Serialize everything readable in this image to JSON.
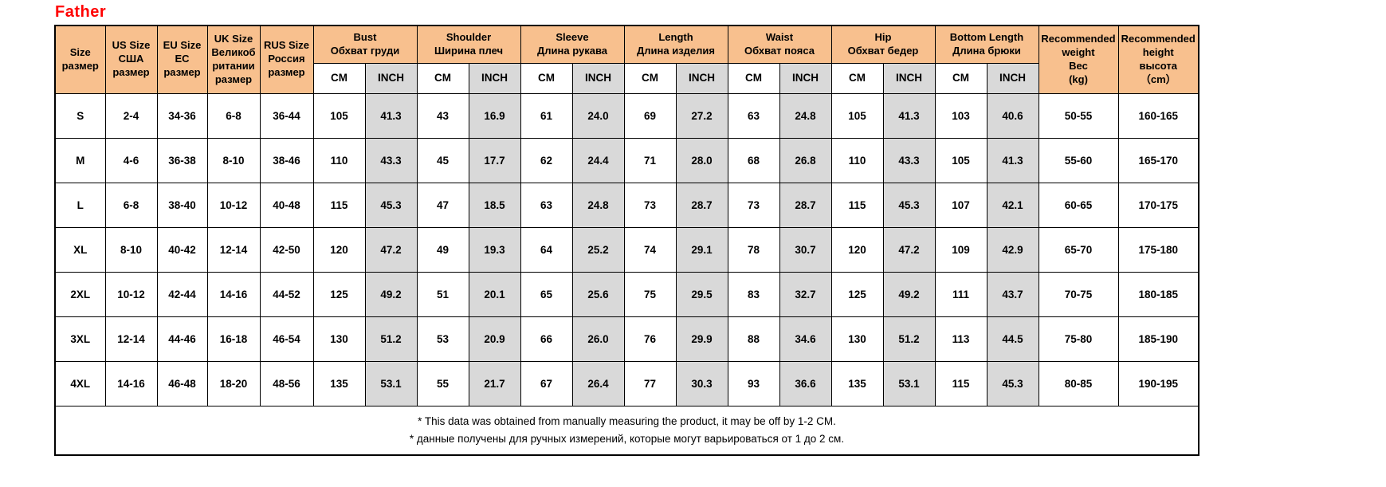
{
  "title": "Father",
  "colors": {
    "header_bg": "#F8C08E",
    "inch_bg": "#D9D9D9",
    "title": "#FF0000",
    "border": "#000000"
  },
  "table": {
    "size_headers": [
      {
        "id": "size",
        "label": "Size\nразмер"
      },
      {
        "id": "us",
        "label": "US Size\nСША\nразмер"
      },
      {
        "id": "eu",
        "label": "EU Size\nEC\nразмер"
      },
      {
        "id": "uk",
        "label": "UK Size\nВеликоб\nритании\nразмер"
      },
      {
        "id": "rus",
        "label": "RUS Size\nРоссия\nразмер"
      }
    ],
    "measure_groups": [
      {
        "id": "bust",
        "label": "Bust\nОбхват груди"
      },
      {
        "id": "shoulder",
        "label": "Shoulder\nШирина плеч"
      },
      {
        "id": "sleeve",
        "label": "Sleeve\nДлина рукава"
      },
      {
        "id": "length",
        "label": "Length\nДлина изделия"
      },
      {
        "id": "waist",
        "label": "Waist\nОбхват пояса"
      },
      {
        "id": "hip",
        "label": "Hip\nОбхват бедер"
      },
      {
        "id": "bottom-length",
        "label": "Bottom Length\nДлина брюки"
      }
    ],
    "units": {
      "cm": "CM",
      "inch": "INCH"
    },
    "recommended": [
      {
        "id": "weight",
        "label": "Recommended\nweight\nВес\n(kg)"
      },
      {
        "id": "height",
        "label": "Recommended\nheight\nвысота\n（cm）"
      }
    ],
    "rows": [
      {
        "size": "S",
        "us": "2-4",
        "eu": "34-36",
        "uk": "6-8",
        "rus": "36-44",
        "measures": [
          [
            "105",
            "41.3"
          ],
          [
            "43",
            "16.9"
          ],
          [
            "61",
            "24.0"
          ],
          [
            "69",
            "27.2"
          ],
          [
            "63",
            "24.8"
          ],
          [
            "105",
            "41.3"
          ],
          [
            "103",
            "40.6"
          ]
        ],
        "weight": "50-55",
        "height": "160-165"
      },
      {
        "size": "M",
        "us": "4-6",
        "eu": "36-38",
        "uk": "8-10",
        "rus": "38-46",
        "measures": [
          [
            "110",
            "43.3"
          ],
          [
            "45",
            "17.7"
          ],
          [
            "62",
            "24.4"
          ],
          [
            "71",
            "28.0"
          ],
          [
            "68",
            "26.8"
          ],
          [
            "110",
            "43.3"
          ],
          [
            "105",
            "41.3"
          ]
        ],
        "weight": "55-60",
        "height": "165-170"
      },
      {
        "size": "L",
        "us": "6-8",
        "eu": "38-40",
        "uk": "10-12",
        "rus": "40-48",
        "measures": [
          [
            "115",
            "45.3"
          ],
          [
            "47",
            "18.5"
          ],
          [
            "63",
            "24.8"
          ],
          [
            "73",
            "28.7"
          ],
          [
            "73",
            "28.7"
          ],
          [
            "115",
            "45.3"
          ],
          [
            "107",
            "42.1"
          ]
        ],
        "weight": "60-65",
        "height": "170-175"
      },
      {
        "size": "XL",
        "us": "8-10",
        "eu": "40-42",
        "uk": "12-14",
        "rus": "42-50",
        "measures": [
          [
            "120",
            "47.2"
          ],
          [
            "49",
            "19.3"
          ],
          [
            "64",
            "25.2"
          ],
          [
            "74",
            "29.1"
          ],
          [
            "78",
            "30.7"
          ],
          [
            "120",
            "47.2"
          ],
          [
            "109",
            "42.9"
          ]
        ],
        "weight": "65-70",
        "height": "175-180"
      },
      {
        "size": "2XL",
        "us": "10-12",
        "eu": "42-44",
        "uk": "14-16",
        "rus": "44-52",
        "measures": [
          [
            "125",
            "49.2"
          ],
          [
            "51",
            "20.1"
          ],
          [
            "65",
            "25.6"
          ],
          [
            "75",
            "29.5"
          ],
          [
            "83",
            "32.7"
          ],
          [
            "125",
            "49.2"
          ],
          [
            "111",
            "43.7"
          ]
        ],
        "weight": "70-75",
        "height": "180-185"
      },
      {
        "size": "3XL",
        "us": "12-14",
        "eu": "44-46",
        "uk": "16-18",
        "rus": "46-54",
        "measures": [
          [
            "130",
            "51.2"
          ],
          [
            "53",
            "20.9"
          ],
          [
            "66",
            "26.0"
          ],
          [
            "76",
            "29.9"
          ],
          [
            "88",
            "34.6"
          ],
          [
            "130",
            "51.2"
          ],
          [
            "113",
            "44.5"
          ]
        ],
        "weight": "75-80",
        "height": "185-190"
      },
      {
        "size": "4XL",
        "us": "14-16",
        "eu": "46-48",
        "uk": "18-20",
        "rus": "48-56",
        "measures": [
          [
            "135",
            "53.1"
          ],
          [
            "55",
            "21.7"
          ],
          [
            "67",
            "26.4"
          ],
          [
            "77",
            "30.3"
          ],
          [
            "93",
            "36.6"
          ],
          [
            "135",
            "53.1"
          ],
          [
            "115",
            "45.3"
          ]
        ],
        "weight": "80-85",
        "height": "190-195"
      }
    ],
    "footnotes": [
      "* This data was obtained from manually measuring the product, it may be off by 1-2 CM.",
      "* данные получены для ручных измерений, которые могут варьироваться от 1 до 2 см."
    ]
  }
}
